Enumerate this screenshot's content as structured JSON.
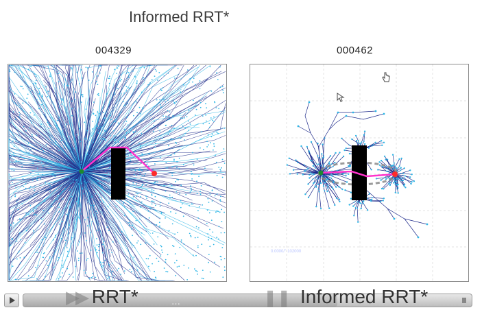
{
  "header": {
    "title": "Informed RRT*"
  },
  "left_panel": {
    "counter": "004329",
    "caption": "RRT*"
  },
  "right_panel": {
    "counter": "000462",
    "caption": "Informed RRT*",
    "bottom_note": "0.0000/\"-102000"
  },
  "player": {
    "progress": 0.7
  },
  "watermark": "…",
  "colors": {
    "tree_dark": "#1e2a8a",
    "tree_light": "#2fb6e6",
    "path": "#ff33cc",
    "start": "#1b8a2e",
    "goal": "#ff2a2a",
    "obstacle": "#000000",
    "ellipse": "#8a8a8a"
  },
  "icons": [
    "play-icon",
    "fast-forward-icon",
    "pause-icon",
    "pointer-cursor-icon",
    "hand-cursor-icon"
  ]
}
